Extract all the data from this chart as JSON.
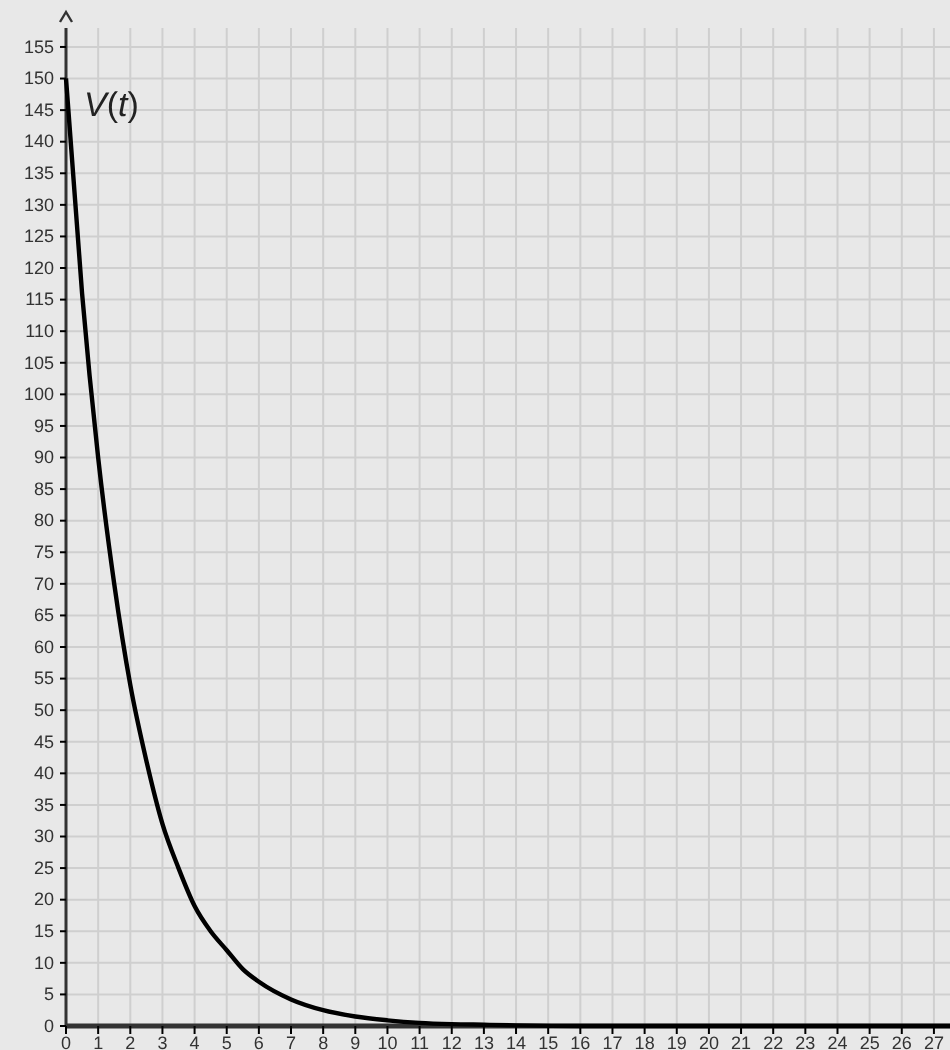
{
  "chart_data": {
    "type": "line",
    "ylabel": "V(t)",
    "x": [
      0,
      0.5,
      1,
      1.5,
      2,
      2.5,
      3,
      3.5,
      4,
      4.5,
      5,
      5.5,
      6,
      7,
      8,
      9,
      10,
      11,
      12,
      13,
      14,
      16,
      20,
      27.5
    ],
    "series": [
      {
        "color": "#000000",
        "values": [
          150,
          116,
          90,
          70,
          54,
          42,
          32,
          25,
          19,
          15,
          12,
          9,
          7,
          4.2,
          2.5,
          1.5,
          0.9,
          0.5,
          0.3,
          0.2,
          0.1,
          0,
          0,
          0
        ]
      }
    ],
    "xlim": [
      0,
      27.5
    ],
    "ylim": [
      0,
      158
    ],
    "xticks": [
      0,
      1,
      2,
      3,
      4,
      5,
      6,
      7,
      8,
      9,
      10,
      11,
      12,
      13,
      14,
      15,
      16,
      17,
      18,
      19,
      20,
      21,
      22,
      23,
      24,
      25,
      26,
      27
    ],
    "yticks": [
      0,
      5,
      10,
      15,
      20,
      25,
      30,
      35,
      40,
      45,
      50,
      55,
      60,
      65,
      70,
      75,
      80,
      85,
      90,
      95,
      100,
      105,
      110,
      115,
      120,
      125,
      130,
      135,
      140,
      145,
      150,
      155
    ],
    "grid": true,
    "marker": "none",
    "line_style": "solid"
  }
}
